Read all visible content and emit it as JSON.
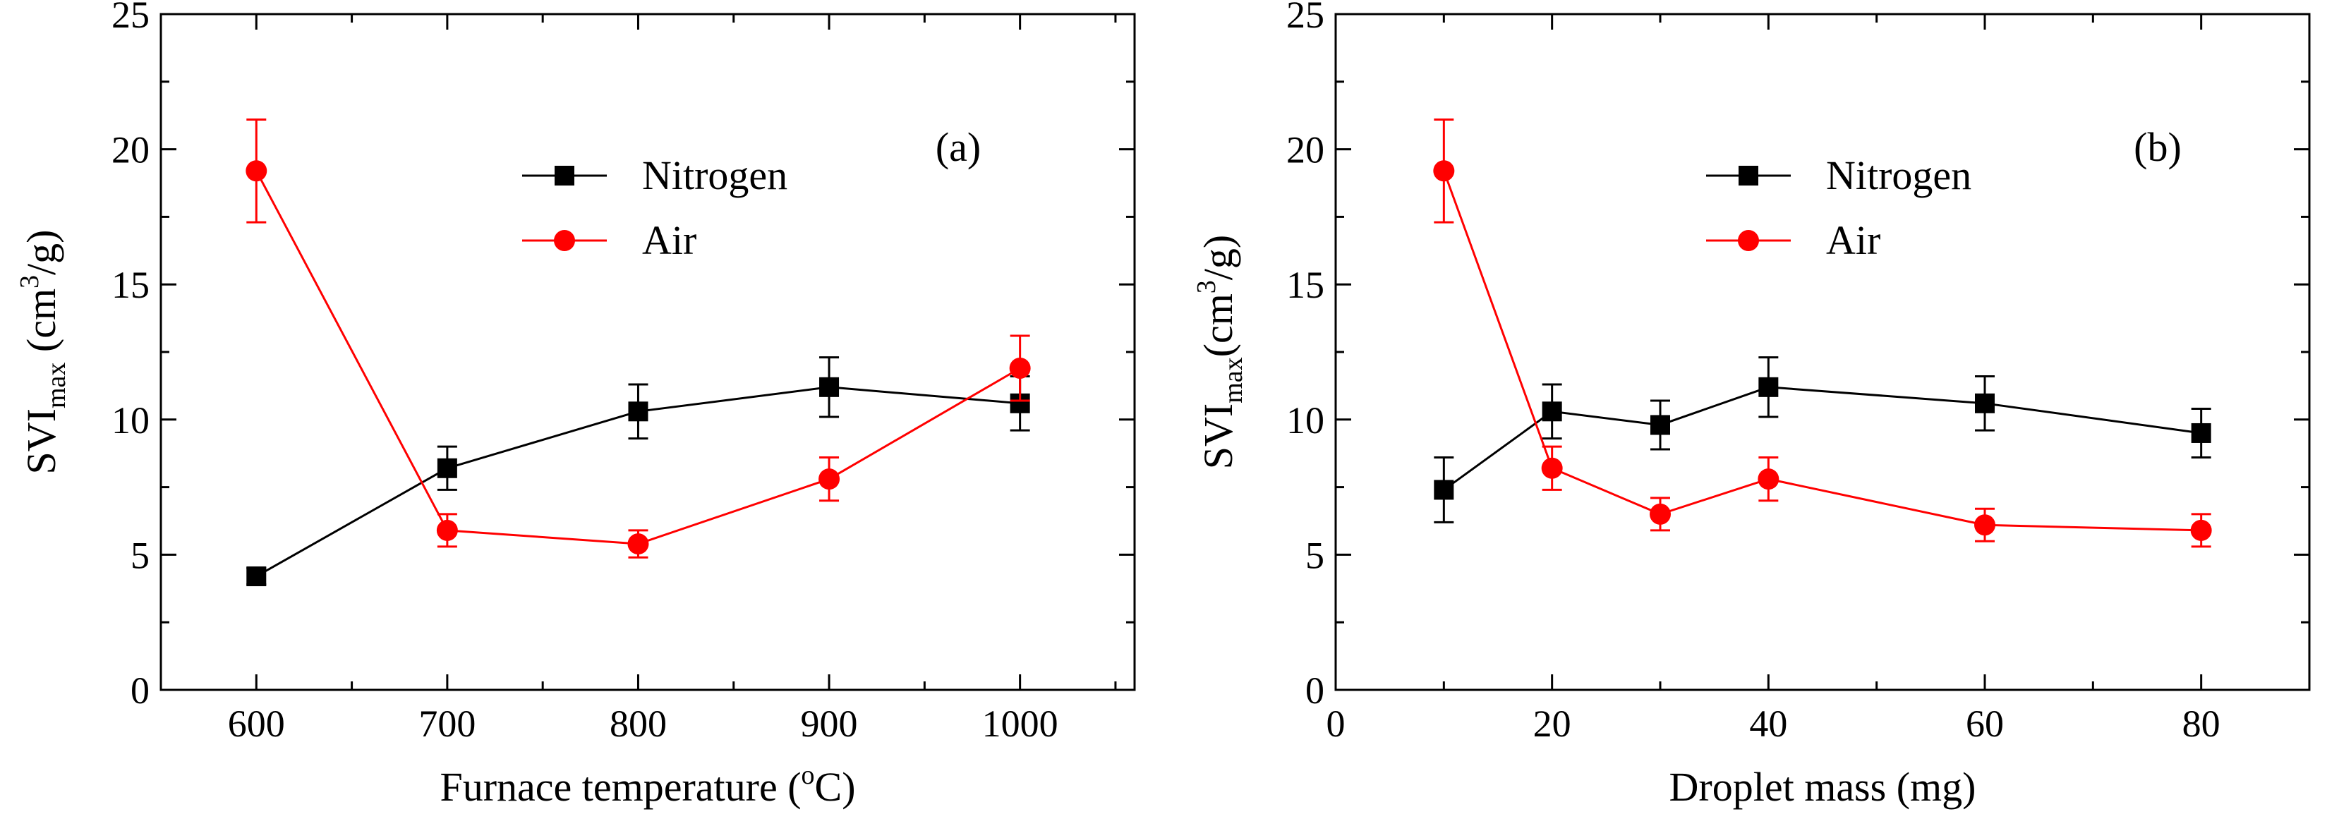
{
  "chart_data": [
    {
      "type": "line",
      "panel_label": "(a)",
      "xlabel": {
        "prefix": "Furnace temperature (",
        "sup": "o",
        "suffix": "C)"
      },
      "ylabel": {
        "base": "SVI",
        "sub": "max",
        "mid": " (cm",
        "sup": "3",
        "suffix": "/g)"
      },
      "xlim": [
        550,
        1060
      ],
      "ylim": [
        0,
        25
      ],
      "xticks": [
        600,
        700,
        800,
        900,
        1000
      ],
      "xtick_labels": [
        "600",
        "700",
        "800",
        "900",
        "1000"
      ],
      "yticks": [
        0,
        5,
        10,
        15,
        20,
        25
      ],
      "ytick_labels": [
        "0",
        "5",
        "10",
        "15",
        "20",
        "25"
      ],
      "legend_position": "upper-center",
      "series": [
        {
          "name": "Nitrogen",
          "color": "#000000",
          "marker": "square",
          "x": [
            600,
            700,
            800,
            900,
            1000
          ],
          "y": [
            4.2,
            8.2,
            10.3,
            11.2,
            10.6
          ],
          "err": [
            0.3,
            0.8,
            1.0,
            1.1,
            1.0
          ]
        },
        {
          "name": "Air",
          "color": "#ff0000",
          "marker": "circle",
          "x": [
            600,
            700,
            800,
            900,
            1000
          ],
          "y": [
            19.2,
            5.9,
            5.4,
            7.8,
            11.9
          ],
          "err": [
            1.9,
            0.6,
            0.5,
            0.8,
            1.2
          ]
        }
      ]
    },
    {
      "type": "line",
      "panel_label": "(b)",
      "xlabel": {
        "prefix": "Droplet mass (mg)",
        "sup": "",
        "suffix": ""
      },
      "ylabel": {
        "base": "SVI",
        "sub": "max",
        "mid": "(cm",
        "sup": "3",
        "suffix": "/g)"
      },
      "xlim": [
        0,
        90
      ],
      "ylim": [
        0,
        25
      ],
      "xticks": [
        0,
        20,
        40,
        60,
        80
      ],
      "xtick_labels": [
        "0",
        "20",
        "40",
        "60",
        "80"
      ],
      "yticks": [
        0,
        5,
        10,
        15,
        20,
        25
      ],
      "ytick_labels": [
        "0",
        "5",
        "10",
        "15",
        "20",
        "25"
      ],
      "legend_position": "upper-center",
      "series": [
        {
          "name": "Nitrogen",
          "color": "#000000",
          "marker": "square",
          "x": [
            10,
            20,
            30,
            40,
            60,
            80
          ],
          "y": [
            7.4,
            10.3,
            9.8,
            11.2,
            10.6,
            9.5
          ],
          "err": [
            1.2,
            1.0,
            0.9,
            1.1,
            1.0,
            0.9
          ]
        },
        {
          "name": "Air",
          "color": "#ff0000",
          "marker": "circle",
          "x": [
            10,
            20,
            30,
            40,
            60,
            80
          ],
          "y": [
            19.2,
            8.2,
            6.5,
            7.8,
            6.1,
            5.9
          ],
          "err": [
            1.9,
            0.8,
            0.6,
            0.8,
            0.6,
            0.6
          ]
        }
      ]
    }
  ]
}
